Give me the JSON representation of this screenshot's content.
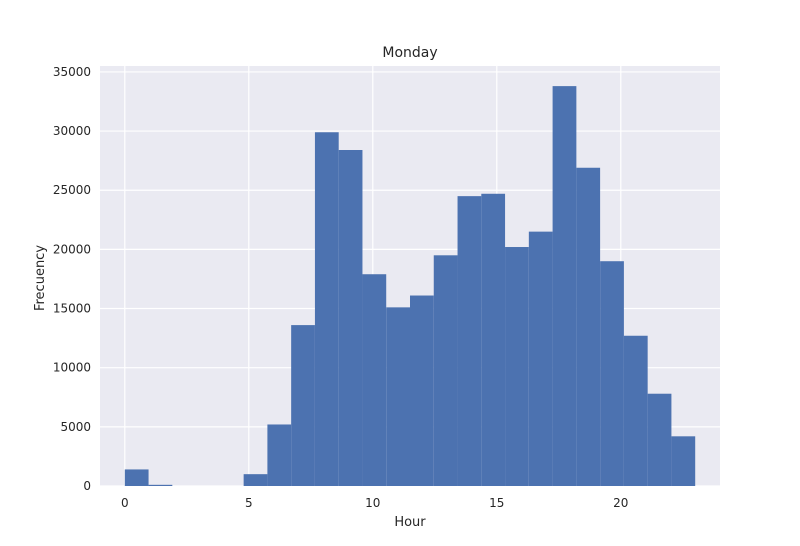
{
  "chart_data": {
    "type": "bar",
    "title": "Monday",
    "xlabel": "Hour",
    "ylabel": "Frecuency",
    "xlim": [
      -1,
      24
    ],
    "ylim": [
      0,
      35500
    ],
    "xticks": [
      0,
      5,
      10,
      15,
      20
    ],
    "yticks": [
      0,
      5000,
      10000,
      15000,
      20000,
      25000,
      30000,
      35000
    ],
    "grid": true,
    "bin_width": 0.958,
    "bins": [
      {
        "start": 0.0,
        "value": 1400
      },
      {
        "start": 0.958,
        "value": 100
      },
      {
        "start": 1.917,
        "value": 0
      },
      {
        "start": 2.875,
        "value": 0
      },
      {
        "start": 3.833,
        "value": 0
      },
      {
        "start": 4.792,
        "value": 1000
      },
      {
        "start": 5.75,
        "value": 5200
      },
      {
        "start": 6.708,
        "value": 13600
      },
      {
        "start": 7.667,
        "value": 29900
      },
      {
        "start": 8.625,
        "value": 28400
      },
      {
        "start": 9.583,
        "value": 17900
      },
      {
        "start": 10.542,
        "value": 15100
      },
      {
        "start": 11.5,
        "value": 16100
      },
      {
        "start": 12.458,
        "value": 19500
      },
      {
        "start": 13.417,
        "value": 24500
      },
      {
        "start": 14.375,
        "value": 24700
      },
      {
        "start": 15.333,
        "value": 20200
      },
      {
        "start": 16.292,
        "value": 21500
      },
      {
        "start": 17.25,
        "value": 33800
      },
      {
        "start": 18.208,
        "value": 26900
      },
      {
        "start": 19.167,
        "value": 19000
      },
      {
        "start": 20.125,
        "value": 12700
      },
      {
        "start": 21.083,
        "value": 7800
      },
      {
        "start": 22.042,
        "value": 4200
      }
    ],
    "colors": {
      "bar": "#4c72b0",
      "plot_background": "#eaeaf2",
      "grid": "#ffffff"
    }
  }
}
